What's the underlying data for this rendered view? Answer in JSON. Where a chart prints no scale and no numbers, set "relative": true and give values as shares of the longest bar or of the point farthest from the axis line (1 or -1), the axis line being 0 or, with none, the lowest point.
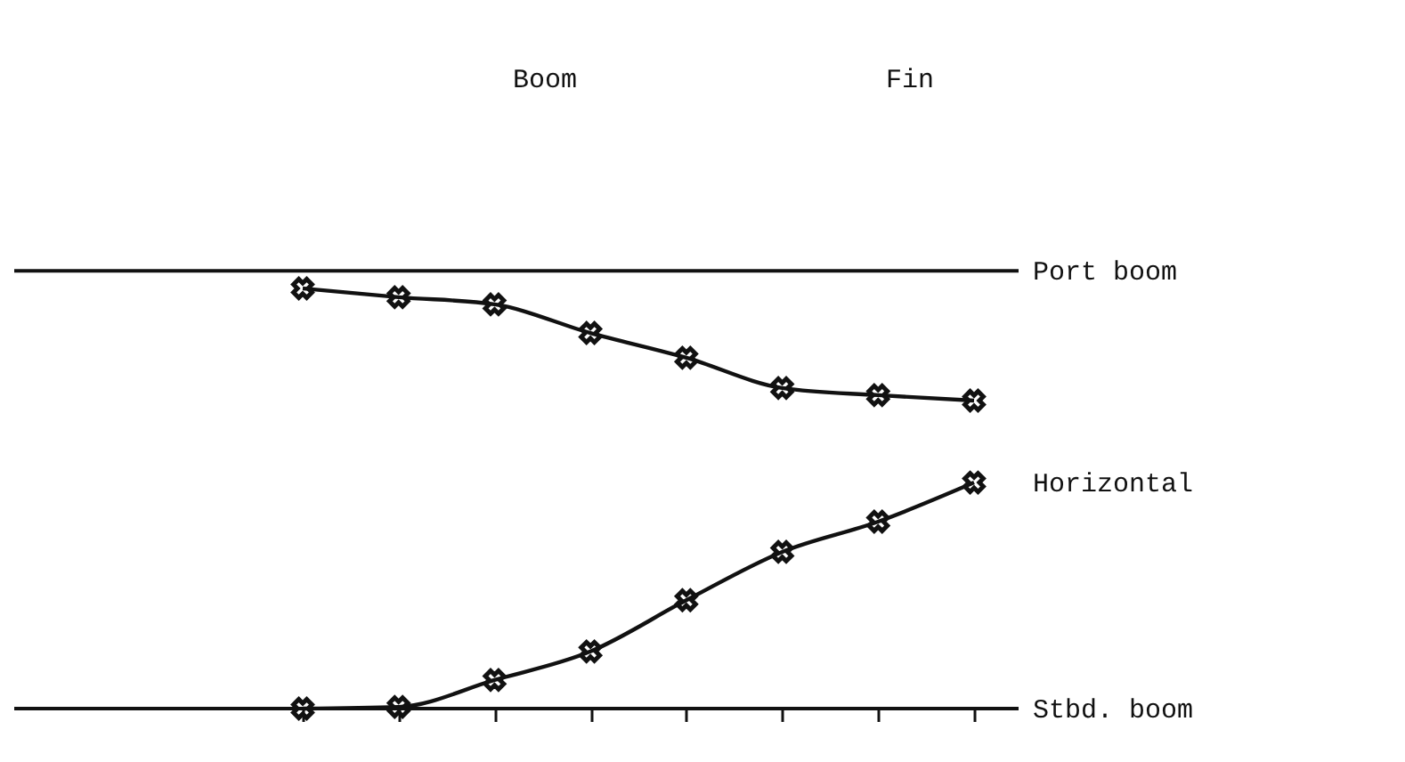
{
  "chart_data": {
    "type": "line",
    "relative": true,
    "categories": [
      null,
      null,
      null,
      null,
      null,
      null,
      null,
      null
    ],
    "series": [
      {
        "color": "#111111",
        "values": [
          1,
          0.979,
          0.962,
          0.894,
          0.835,
          0.763,
          0.746,
          0.733
        ]
      },
      {
        "color": "#111111",
        "values": [
          0,
          0.004,
          0.068,
          0.136,
          0.258,
          0.373,
          0.445,
          0.538
        ]
      }
    ],
    "marker": "cross",
    "line_style": "solid",
    "ref_lines": [
      {
        "axis": "y",
        "value": 1.042,
        "label": "Port boom"
      },
      {
        "axis": "y",
        "value": 0,
        "label": "Stbd. boom"
      }
    ],
    "annotations": [
      "Boom",
      "Fin",
      "Horizontal"
    ]
  }
}
